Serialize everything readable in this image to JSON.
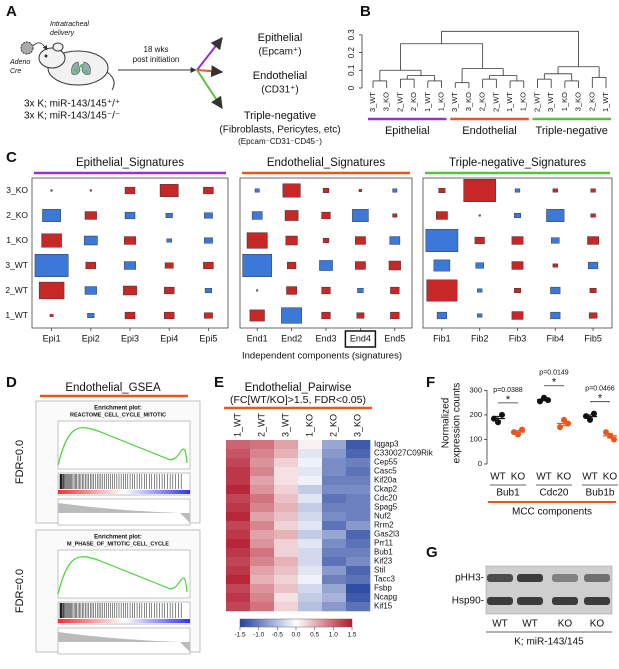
{
  "panel_labels": [
    "A",
    "B",
    "C",
    "D",
    "E",
    "F",
    "G"
  ],
  "panel_a": {
    "delivery": [
      "Intratracheal",
      "delivery"
    ],
    "vector": [
      "Adeno",
      "Cre"
    ],
    "time": [
      "18 wks",
      "post initiation"
    ],
    "genotypes": [
      "3x K; miR-143/145⁺/⁺",
      "3x K; miR-143/145⁻/⁻"
    ],
    "populations": [
      {
        "name": "Epithelial",
        "markers": [
          "(Epcam⁺)"
        ],
        "color": "#9b30d0"
      },
      {
        "name": "Endothelial",
        "markers": [
          "(CD31⁺)"
        ],
        "color": "#e8571e"
      },
      {
        "name": "Triple-negative",
        "markers": [
          "(Fibroblasts, Pericytes, etc)",
          "(Epcam⁻CD31⁻CD45⁻)"
        ],
        "color": "#55c43a"
      }
    ]
  },
  "chart_data": [
    {
      "type": "dendrogram",
      "ylim": [
        0,
        0.35
      ],
      "yticks": [
        0,
        0.1,
        0.2,
        0.3
      ],
      "tree": {
        "height": 0.32,
        "children": [
          {
            "height": 0.25,
            "children": [
              {
                "height": 0.1,
                "children": [
                  {
                    "height": 0.04,
                    "children": [
                      "3_WT",
                      "3_KO"
                    ]
                  },
                  {
                    "height": 0.07,
                    "children": [
                      {
                        "height": 0.05,
                        "children": [
                          "2_WT",
                          "2_KO"
                        ]
                      },
                      {
                        "height": 0.04,
                        "children": [
                          "1_WT",
                          "1_KO"
                        ]
                      }
                    ]
                  }
                ]
              },
              {
                "height": 0.11,
                "children": [
                  {
                    "height": 0.03,
                    "children": [
                      "3_WT",
                      "3_KO"
                    ]
                  },
                  {
                    "height": 0.07,
                    "children": [
                      {
                        "height": 0.05,
                        "children": [
                          "2_KO",
                          "2_WT"
                        ]
                      },
                      {
                        "height": 0.04,
                        "children": [
                          "1_WT",
                          "1_KO"
                        ]
                      }
                    ]
                  }
                ]
              }
            ]
          },
          {
            "height": 0.12,
            "children": [
              {
                "height": 0.08,
                "children": [
                  {
                    "height": 0.05,
                    "children": [
                      "2_WT",
                      "3_WT"
                    ]
                  },
                  {
                    "height": 0.04,
                    "children": [
                      "1_KO",
                      "3_KO"
                    ]
                  }
                ]
              },
              {
                "height": 0.06,
                "children": [
                  "2_KO",
                  "1_WT"
                ]
              }
            ]
          }
        ]
      },
      "groups": [
        {
          "name": "Epithelial",
          "color": "#9b30d0"
        },
        {
          "name": "Endothelial",
          "color": "#e8571e"
        },
        {
          "name": "Triple-negative",
          "color": "#55c43a"
        }
      ]
    },
    {
      "type": "bubble_grid",
      "title": "Epithelial_Signatures",
      "color": "#9b30d0",
      "positive_color": "#c62828",
      "negative_color": "#3b78d8",
      "rows": [
        "3_KO",
        "2_KO",
        "1_KO",
        "3_WT",
        "2_WT",
        "1_WT"
      ],
      "columns": [
        "Epi1",
        "Epi2",
        "Epi3",
        "Epi4",
        "Epi5"
      ],
      "values": [
        [
          0.05,
          0.05,
          0.3,
          0.55,
          0.3
        ],
        [
          -0.55,
          0.35,
          -0.3,
          -0.2,
          -0.25
        ],
        [
          0.6,
          -0.4,
          0.35,
          -0.15,
          -0.25
        ],
        [
          -1.0,
          0.3,
          -0.35,
          0.25,
          0.3
        ],
        [
          0.75,
          -0.35,
          0.4,
          0.3,
          -0.2
        ],
        [
          0.1,
          -0.2,
          0.3,
          0.3,
          0.25
        ]
      ]
    },
    {
      "type": "bubble_grid",
      "title": "Endothelial_Signatures",
      "color": "#e8571e",
      "positive_color": "#c62828",
      "negative_color": "#3b78d8",
      "columns": [
        "End1",
        "End2",
        "End3",
        "End4",
        "End5"
      ],
      "boxed": [
        false,
        false,
        false,
        true,
        false
      ],
      "values": [
        [
          -0.15,
          0.6,
          0.2,
          0.1,
          -0.15
        ],
        [
          -0.35,
          0.45,
          0.3,
          -0.55,
          0.15
        ],
        [
          0.7,
          0.4,
          0.2,
          0.35,
          -0.35
        ],
        [
          -1.0,
          0.3,
          -0.45,
          0.35,
          0.4
        ],
        [
          0.05,
          0.35,
          0.3,
          -0.2,
          0.3
        ],
        [
          0.5,
          -0.7,
          0.3,
          0.25,
          0.3
        ]
      ]
    },
    {
      "type": "bubble_grid",
      "title": "Triple-negative_Signatures",
      "color": "#55c43a",
      "positive_color": "#c62828",
      "negative_color": "#3b78d8",
      "columns": [
        "Fib1",
        "Fib2",
        "Fib3",
        "Fib4",
        "Fib5"
      ],
      "values": [
        [
          0.2,
          1.0,
          -0.15,
          0.15,
          0.15
        ],
        [
          0.35,
          0.05,
          -0.2,
          -0.55,
          0.15
        ],
        [
          -1.0,
          0.3,
          0.35,
          -0.25,
          0.35
        ],
        [
          -0.5,
          -0.25,
          0.35,
          0.15,
          -0.3
        ],
        [
          0.95,
          -0.15,
          0.2,
          -0.3,
          0.2
        ],
        [
          -0.3,
          -0.15,
          0.35,
          -0.3,
          0.25
        ]
      ]
    },
    {
      "type": "heatmap",
      "title": "Endothelial_Pairwise",
      "subtitle": "(FC[WT/KO]>1.5, FDR<0.05)",
      "title_color": "#e8571e",
      "columns": [
        "1_WT",
        "2_WT",
        "3_WT",
        "1_KO",
        "2_KO",
        "3_KO"
      ],
      "rows": [
        "Iqgap3",
        "C330027C09Rik",
        "Cep55",
        "Casc5",
        "Kif20a",
        "Ckap2",
        "Cdc20",
        "Spag5",
        "Nuf2",
        "Rrm2",
        "Gas2l3",
        "Prr11",
        "Bub1",
        "Kif23",
        "Stil",
        "Tacc3",
        "Fsbp",
        "Ncapg",
        "Kif15"
      ],
      "row_colors": [
        "#2e6fd0",
        "#111111",
        "#2e6fd0",
        "#2e6fd0",
        "#2e6fd0",
        "#2e6fd0",
        "#2e6fd0",
        "#2e6fd0",
        "#2e6fd0",
        "#2e6fd0",
        "#2e6fd0",
        "#2e6fd0",
        "#2e6fd0",
        "#2e6fd0",
        "#2e6fd0",
        "#2e6fd0",
        "#111111",
        "#2e6fd0",
        "#2e6fd0"
      ],
      "values": [
        [
          1.0,
          0.9,
          0.6,
          0.1,
          -0.7,
          -1.3
        ],
        [
          1.1,
          0.8,
          0.5,
          -0.2,
          -0.8,
          -1.2
        ],
        [
          1.2,
          0.7,
          0.3,
          -0.1,
          -0.9,
          -1.0
        ],
        [
          1.3,
          0.8,
          0.2,
          -0.2,
          -0.9,
          -1.1
        ],
        [
          1.3,
          0.6,
          0.2,
          -0.1,
          -1.0,
          -1.0
        ],
        [
          1.4,
          0.7,
          0.3,
          -0.4,
          -0.9,
          -0.9
        ],
        [
          1.2,
          0.9,
          0.4,
          -0.2,
          -1.1,
          -1.0
        ],
        [
          1.3,
          0.8,
          0.5,
          -0.4,
          -1.0,
          -1.0
        ],
        [
          1.4,
          0.6,
          0.4,
          -0.3,
          -0.9,
          -1.0
        ],
        [
          1.2,
          0.8,
          0.3,
          -0.2,
          -1.1,
          -0.8
        ],
        [
          1.3,
          0.6,
          0.5,
          -0.4,
          -0.7,
          -1.2
        ],
        [
          1.4,
          0.7,
          0.3,
          -0.2,
          -0.9,
          -1.1
        ],
        [
          1.3,
          0.9,
          0.3,
          -0.3,
          -1.0,
          -1.0
        ],
        [
          1.2,
          0.8,
          0.5,
          -0.3,
          -1.1,
          -0.9
        ],
        [
          1.3,
          0.6,
          0.4,
          -0.2,
          -0.8,
          -1.2
        ],
        [
          1.4,
          0.5,
          0.3,
          -0.1,
          -1.0,
          -1.1
        ],
        [
          1.2,
          0.7,
          0.4,
          -0.3,
          -0.7,
          -1.4
        ],
        [
          1.3,
          0.8,
          0.2,
          -0.4,
          -0.6,
          -1.3
        ],
        [
          1.2,
          0.9,
          0.3,
          -0.5,
          -0.8,
          -1.1
        ]
      ],
      "colorbar": {
        "lim": [
          -1.5,
          1.5
        ],
        "colors": [
          "#22409e",
          "#ffffff",
          "#b2182b"
        ],
        "ticks": [
          -1.5,
          {
            "value": -1,
            "label": "-1.0"
          },
          -0.5,
          {
            "value": 0,
            "label": "0.0"
          },
          0.5,
          {
            "value": 1,
            "label": "1.0"
          },
          1.5
        ]
      }
    },
    {
      "type": "dot",
      "ylabel": [
        "Normalized",
        "expression counts"
      ],
      "ylim": [
        0,
        330
      ],
      "yticks": [
        0,
        100,
        200,
        300
      ],
      "categories": [
        "WT",
        "KO",
        "WT",
        "KO",
        "WT",
        "KO"
      ],
      "category_colors": [
        "#111111",
        "#e8571e",
        "#111111",
        "#e8571e",
        "#111111",
        "#e8571e"
      ],
      "values": [
        [
          185,
          170,
          200
        ],
        [
          130,
          120,
          140
        ],
        [
          255,
          270,
          260
        ],
        [
          150,
          180,
          165
        ],
        [
          195,
          180,
          205
        ],
        [
          130,
          115,
          100
        ]
      ],
      "means": [
        185,
        130,
        262,
        165,
        193,
        115
      ],
      "sems": [
        9,
        6,
        4,
        9,
        7,
        9
      ],
      "groups": [
        "Bub1",
        "Cdc20",
        "Bub1b"
      ],
      "tests": [
        {
          "label": "p=0.0388",
          "mark": "*"
        },
        {
          "label": "p=0.0149",
          "mark": "*"
        },
        {
          "label": "p=0.0466",
          "mark": "*"
        }
      ],
      "footer": "MCC components",
      "footer_color": "#e8571e"
    }
  ],
  "panel_c": {
    "xlabel": "Independent components (signatures)"
  },
  "panel_d": {
    "title": "Endothelial_GSEA",
    "title_color": "#e8571e",
    "plots": [
      {
        "header": "Enrichment plot:",
        "name": "REACTOME_CELL_CYCLE_MITOTIC",
        "fdr": "FDR=0.0"
      },
      {
        "header": "Enrichment plot:",
        "name": "M_PHASE_OF_MITOTIC_CELL_CYCLE",
        "fdr": "FDR=0.0"
      }
    ]
  },
  "panel_g": {
    "rows": [
      "pHH3-",
      "Hsp90-"
    ],
    "lanes": [
      "WT",
      "WT",
      "KO",
      "KO"
    ],
    "genotype": "K; miR-143/145"
  }
}
